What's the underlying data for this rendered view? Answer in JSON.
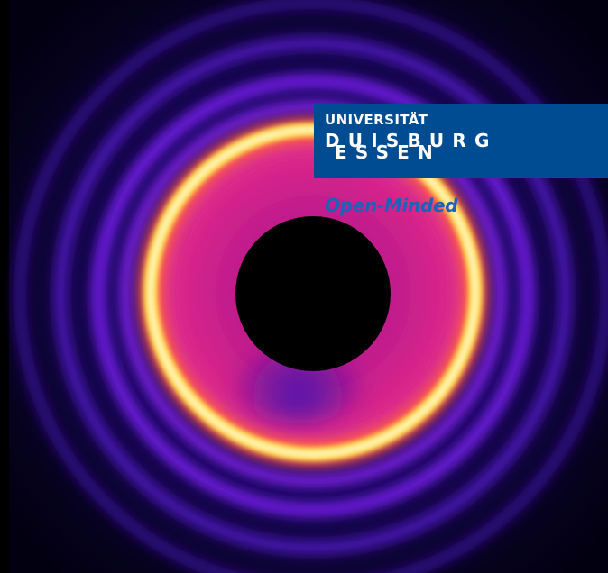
{
  "image": {
    "subject": "",
    "colors": {
      "background": "#000000",
      "outer_glow": "#2a0a8a",
      "outer_ring": "#7b1cf0",
      "inner_field": "#d9238a",
      "bright_ring": "#ffe96a",
      "beamstop": "#000000"
    }
  },
  "logo": {
    "university": "UNIVERSITÄT",
    "city_top": "DUISBURG",
    "city_bottom": "ESSEN",
    "slogan": "Open-Minded",
    "colors": {
      "box": "#004c93",
      "text": "#ffffff",
      "slogan": "#1a63bd"
    }
  }
}
